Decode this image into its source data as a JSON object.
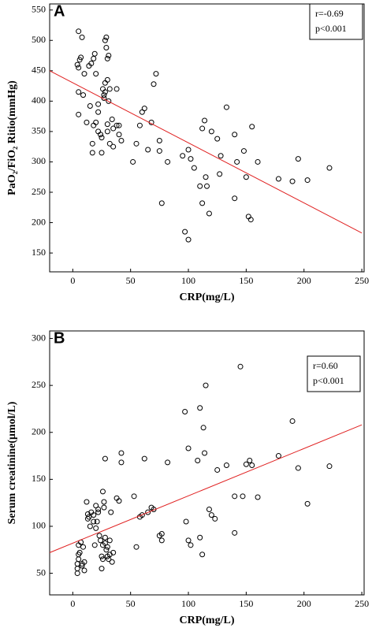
{
  "chart_data": [
    {
      "type": "scatter",
      "label": "A",
      "x_label": "CRP(mg/L)",
      "y_label": "PaO₂/FiO₂ Ritio(mmHg)",
      "annotations": [
        "r=-0.69",
        "p<0.001"
      ],
      "xlim": [
        -20,
        252
      ],
      "xticks": [
        0,
        50,
        100,
        150,
        200,
        250
      ],
      "ylim": [
        119,
        560
      ],
      "yticks": [
        150,
        200,
        250,
        300,
        350,
        400,
        450,
        500,
        550
      ],
      "color": "#000000",
      "x": [
        5,
        8,
        7,
        6,
        4,
        5,
        10,
        5,
        9,
        5,
        12,
        15,
        18,
        16,
        14,
        19,
        20,
        17,
        17,
        18,
        20,
        22,
        22,
        22,
        24,
        25,
        25,
        26,
        27,
        27,
        28,
        28,
        28,
        29,
        29,
        30,
        31,
        30,
        31,
        32,
        30,
        30,
        32,
        34,
        35,
        38,
        38,
        40,
        42,
        35,
        40,
        52,
        55,
        58,
        60,
        62,
        65,
        68,
        70,
        72,
        75,
        75,
        77,
        82,
        95,
        97,
        100,
        100,
        102,
        105,
        110,
        112,
        112,
        114,
        115,
        116,
        118,
        120,
        125,
        127,
        128,
        133,
        140,
        140,
        142,
        148,
        150,
        152,
        154,
        155,
        160,
        178,
        190,
        195,
        203,
        222
      ],
      "values": [
        515,
        505,
        472,
        468,
        460,
        455,
        445,
        415,
        410,
        378,
        365,
        392,
        470,
        462,
        458,
        478,
        445,
        330,
        315,
        360,
        365,
        395,
        382,
        350,
        345,
        340,
        315,
        420,
        410,
        405,
        415,
        430,
        500,
        505,
        488,
        470,
        475,
        435,
        400,
        420,
        362,
        350,
        330,
        370,
        355,
        420,
        360,
        345,
        335,
        325,
        360,
        300,
        330,
        360,
        382,
        388,
        320,
        365,
        428,
        445,
        335,
        318,
        232,
        300,
        310,
        185,
        172,
        320,
        305,
        290,
        260,
        232,
        355,
        368,
        275,
        260,
        215,
        350,
        338,
        280,
        310,
        390,
        345,
        240,
        300,
        318,
        275,
        210,
        205,
        358,
        300,
        272,
        268,
        305,
        270,
        290
      ],
      "fit": {
        "color": "#e02020",
        "x": [
          -20,
          250
        ],
        "values": [
          450,
          183
        ]
      }
    },
    {
      "type": "scatter",
      "label": "B",
      "x_label": "CRP(mg/L)",
      "y_label": "Serum creatinine(μmol/L)",
      "annotations": [
        "r=0.60",
        "p<0.001"
      ],
      "xlim": [
        -20,
        252
      ],
      "xticks": [
        0,
        50,
        100,
        150,
        200,
        250
      ],
      "ylim": [
        27,
        308
      ],
      "yticks": [
        50,
        100,
        150,
        200,
        250,
        300
      ],
      "color": "#000000",
      "x": [
        4,
        4,
        4,
        5,
        5,
        5,
        6,
        7,
        8,
        8,
        9,
        10,
        10,
        12,
        13,
        13,
        14,
        15,
        16,
        18,
        18,
        19,
        20,
        20,
        21,
        22,
        22,
        23,
        24,
        25,
        25,
        26,
        26,
        26,
        27,
        27,
        28,
        28,
        28,
        29,
        30,
        30,
        31,
        32,
        32,
        33,
        34,
        35,
        38,
        40,
        42,
        42,
        53,
        55,
        58,
        60,
        62,
        65,
        68,
        70,
        75,
        77,
        77,
        82,
        97,
        98,
        100,
        100,
        102,
        108,
        110,
        110,
        112,
        113,
        114,
        115,
        118,
        120,
        123,
        125,
        133,
        140,
        140,
        145,
        147,
        150,
        153,
        155,
        160,
        178,
        190,
        195,
        203,
        222
      ],
      "values": [
        50,
        55,
        60,
        65,
        70,
        80,
        72,
        83,
        58,
        60,
        78,
        53,
        62,
        126,
        113,
        108,
        110,
        100,
        115,
        112,
        105,
        80,
        98,
        122,
        105,
        118,
        115,
        90,
        85,
        55,
        68,
        65,
        80,
        137,
        120,
        126,
        172,
        88,
        82,
        75,
        78,
        68,
        65,
        70,
        85,
        115,
        62,
        72,
        130,
        127,
        178,
        168,
        132,
        78,
        110,
        112,
        172,
        115,
        120,
        118,
        90,
        92,
        85,
        168,
        222,
        105,
        183,
        85,
        80,
        170,
        226,
        88,
        70,
        205,
        178,
        250,
        118,
        112,
        108,
        160,
        165,
        132,
        93,
        270,
        132,
        166,
        170,
        165,
        131,
        175,
        212,
        162,
        124,
        164
      ],
      "fit": {
        "color": "#e02020",
        "x": [
          -20,
          250
        ],
        "values": [
          72,
          208
        ]
      }
    }
  ]
}
